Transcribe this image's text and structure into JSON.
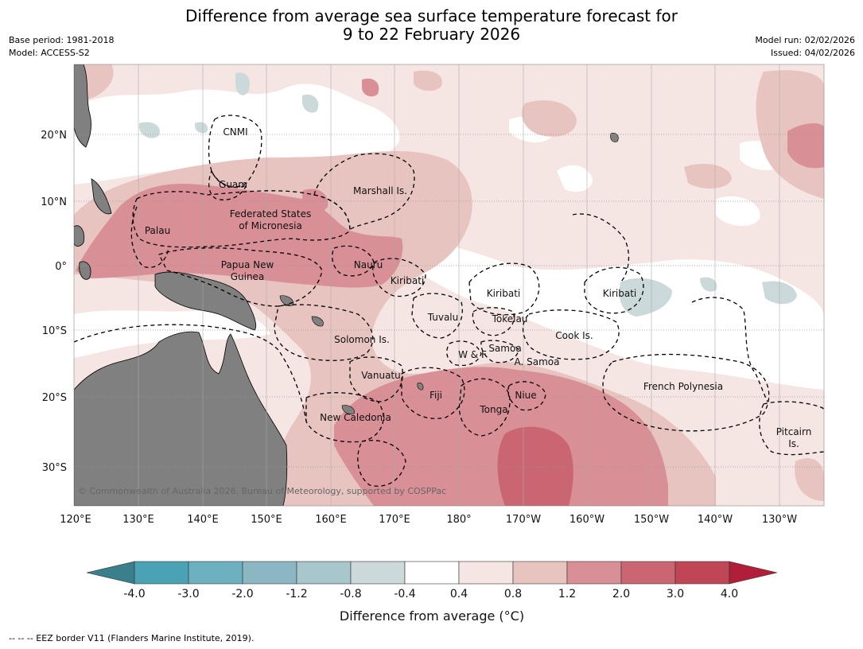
{
  "title": {
    "line1": "Difference from average sea surface temperature forecast for",
    "line2": "9 to 22 February 2026"
  },
  "meta": {
    "base_period": "Base period: 1981-2018",
    "model": "Model: ACCESS-S2",
    "model_run": "Model run: 02/02/2026",
    "issued": "Issued: 04/02/2026"
  },
  "map": {
    "lat_ticks": [
      "20°N",
      "10°N",
      "0°",
      "10°S",
      "20°S",
      "30°S"
    ],
    "lon_ticks": [
      "120°E",
      "130°E",
      "140°E",
      "150°E",
      "160°E",
      "170°E",
      "180°",
      "170°W",
      "160°W",
      "150°W",
      "140°W",
      "130°W"
    ],
    "labels": {
      "cnmi": "CNMI",
      "guam": "Guam",
      "marshall": "Marshall Is.",
      "fsm_1": "Federated States",
      "fsm_2": "of Micronesia",
      "palau": "Palau",
      "png_1": "Papua New",
      "png_2": "Guinea",
      "nauru": "Nauru",
      "kiribati_w": "Kiribati",
      "kiribati_c": "Kiribati",
      "kiribati_e": "Kiribati",
      "tuvalu": "Tuvalu",
      "tokelau": "Tokelau",
      "cook": "Cook Is.",
      "solomon": "Solomon Is.",
      "samoa": "Samoa",
      "wf": "W & F",
      "asamoa": "A. Samoa",
      "vanuatu": "Vanuatu",
      "fiji": "Fiji",
      "niue": "Niue",
      "tonga": "Tonga",
      "french_polynesia": "French Polynesia",
      "new_caledonia": "New Caledonia",
      "pitcairn_1": "Pitcairn",
      "pitcairn_2": "Is."
    },
    "copyright": "© Commonwealth of Australia 2026, Bureau of Meteorology, supported by COSPPac"
  },
  "colorbar": {
    "ticks": [
      "-4.0",
      "-3.0",
      "-2.0",
      "-1.2",
      "-0.8",
      "-0.4",
      "0.4",
      "0.8",
      "1.2",
      "2.0",
      "3.0",
      "4.0"
    ],
    "colors": {
      "low_extend": "#3a7f8c",
      "b1": "#4aa3b5",
      "b2": "#6db0c0",
      "b3": "#8bb7c3",
      "b4": "#a8c7cc",
      "b5": "#ccd9db",
      "b6": "#ffffff",
      "b7": "#f5e5e3",
      "b8": "#e8c4c1",
      "b9": "#d88f96",
      "b10": "#c96671",
      "b11": "#c04555",
      "high_extend": "#b01e3a"
    },
    "title": "Difference from average (°C)"
  },
  "footnote": "--  --  -- EEZ border V11 (Flanders Marine Institute, 2019)."
}
